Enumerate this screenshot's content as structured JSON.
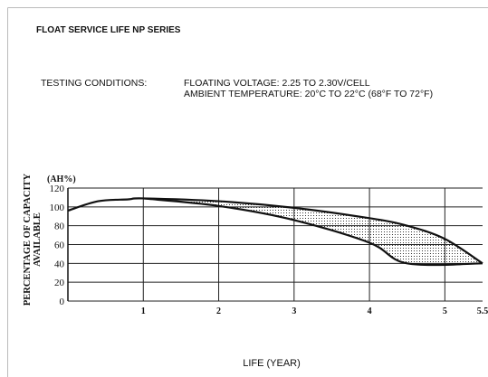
{
  "chart_data": {
    "type": "line",
    "title": "FLOAT SERVICE LIFE NP SERIES",
    "conditions_label": "TESTING CONDITIONS:",
    "conditions": [
      "FLOATING VOLTAGE: 2.25 TO 2.30V/CELL",
      "AMBIENT TEMPERATURE: 20°C TO 22°C (68°F TO 72°F)"
    ],
    "y_unit": "(AH%)",
    "y_label": [
      "PERCENTAGE OF CAPACITY",
      "AVAILABLE"
    ],
    "x_label": "LIFE (YEAR)",
    "xlim": [
      0,
      5.5
    ],
    "xticks": [
      1,
      2,
      3,
      4,
      5,
      5.5
    ],
    "ylim": [
      0,
      120
    ],
    "yticks": [
      0,
      20,
      40,
      60,
      80,
      100,
      120
    ],
    "grid": true,
    "color": "#111111",
    "band_fill": "dotted",
    "series": [
      {
        "x": [
          0,
          0.4,
          0.8,
          1,
          2,
          3,
          4,
          4.5,
          5,
          5.5
        ],
        "values": [
          96,
          106,
          108,
          109,
          106,
          99,
          88,
          80,
          66,
          40
        ]
      },
      {
        "x": [
          1,
          2,
          3,
          4,
          4.5,
          5.5
        ],
        "values": [
          109,
          101,
          86,
          62,
          40,
          40
        ]
      }
    ]
  }
}
